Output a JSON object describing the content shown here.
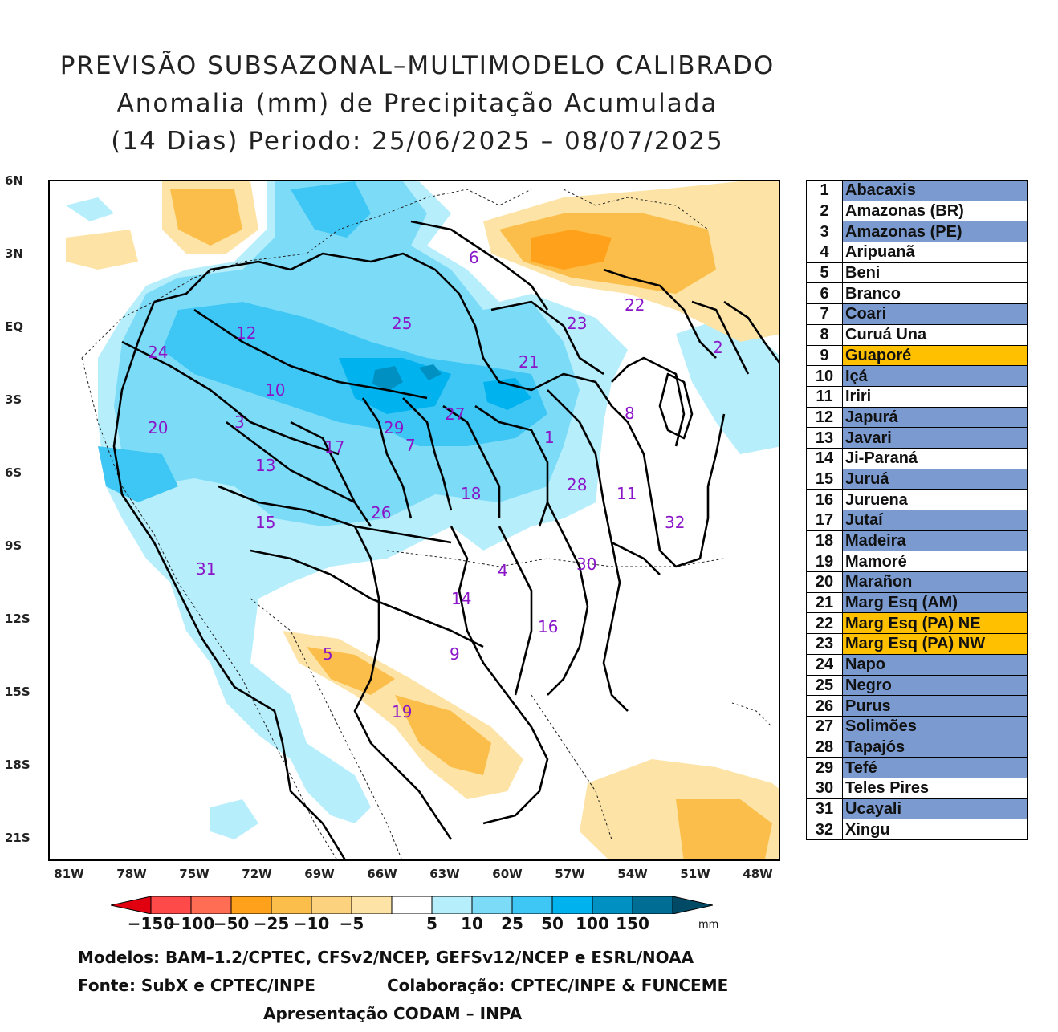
{
  "title": {
    "line1": "PREVISÃO SUBSAZONAL–MULTIMODELO CALIBRADO",
    "line2": "Anomalia (mm) de Precipitação Acumulada",
    "line3": "(14 Dias) Periodo: 25/06/2025 – 08/07/2025"
  },
  "axes": {
    "lat": [
      "6N",
      "3N",
      "EQ",
      "3S",
      "6S",
      "9S",
      "12S",
      "15S",
      "18S",
      "21S"
    ],
    "lon": [
      "81W",
      "78W",
      "75W",
      "72W",
      "69W",
      "66W",
      "63W",
      "60W",
      "57W",
      "54W",
      "51W",
      "48W"
    ]
  },
  "map_labels": [
    "1",
    "2",
    "3",
    "4",
    "5",
    "6",
    "7",
    "8",
    "9",
    "10",
    "11",
    "12",
    "13",
    "14",
    "15",
    "16",
    "17",
    "18",
    "19",
    "20",
    "21",
    "22",
    "23",
    "24",
    "25",
    "26",
    "27",
    "28",
    "29",
    "30",
    "31",
    "32"
  ],
  "basins": [
    {
      "num": "1",
      "name": "Abacaxis",
      "color": "#7b9bd0"
    },
    {
      "num": "2",
      "name": "Amazonas (BR)",
      "color": "#ffffff"
    },
    {
      "num": "3",
      "name": "Amazonas (PE)",
      "color": "#7b9bd0"
    },
    {
      "num": "4",
      "name": "Aripuanã",
      "color": "#ffffff"
    },
    {
      "num": "5",
      "name": "Beni",
      "color": "#ffffff"
    },
    {
      "num": "6",
      "name": "Branco",
      "color": "#ffffff"
    },
    {
      "num": "7",
      "name": "Coari",
      "color": "#7b9bd0"
    },
    {
      "num": "8",
      "name": "Curuá Una",
      "color": "#ffffff"
    },
    {
      "num": "9",
      "name": "Guaporé",
      "color": "#ffc000"
    },
    {
      "num": "10",
      "name": "Içá",
      "color": "#7b9bd0"
    },
    {
      "num": "11",
      "name": "Iriri",
      "color": "#ffffff"
    },
    {
      "num": "12",
      "name": "Japurá",
      "color": "#7b9bd0"
    },
    {
      "num": "13",
      "name": "Javari",
      "color": "#7b9bd0"
    },
    {
      "num": "14",
      "name": "Ji-Paraná",
      "color": "#ffffff"
    },
    {
      "num": "15",
      "name": "Juruá",
      "color": "#7b9bd0"
    },
    {
      "num": "16",
      "name": "Juruena",
      "color": "#ffffff"
    },
    {
      "num": "17",
      "name": "Jutaí",
      "color": "#7b9bd0"
    },
    {
      "num": "18",
      "name": "Madeira",
      "color": "#7b9bd0"
    },
    {
      "num": "19",
      "name": "Mamoré",
      "color": "#ffffff"
    },
    {
      "num": "20",
      "name": "Marañon",
      "color": "#7b9bd0"
    },
    {
      "num": "21",
      "name": "Marg Esq (AM)",
      "color": "#7b9bd0"
    },
    {
      "num": "22",
      "name": "Marg Esq (PA) NE",
      "color": "#ffc000"
    },
    {
      "num": "23",
      "name": "Marg Esq (PA) NW",
      "color": "#ffc000"
    },
    {
      "num": "24",
      "name": "Napo",
      "color": "#7b9bd0"
    },
    {
      "num": "25",
      "name": "Negro",
      "color": "#7b9bd0"
    },
    {
      "num": "26",
      "name": "Purus",
      "color": "#7b9bd0"
    },
    {
      "num": "27",
      "name": "Solimões",
      "color": "#7b9bd0"
    },
    {
      "num": "28",
      "name": "Tapajós",
      "color": "#7b9bd0"
    },
    {
      "num": "29",
      "name": "Tefé",
      "color": "#7b9bd0"
    },
    {
      "num": "30",
      "name": "Teles Pires",
      "color": "#ffffff"
    },
    {
      "num": "31",
      "name": "Ucayali",
      "color": "#7b9bd0"
    },
    {
      "num": "32",
      "name": "Xingu",
      "color": "#ffffff"
    }
  ],
  "colorbar": {
    "ticks": [
      "−150",
      "−100",
      "−50",
      "−25",
      "−10",
      "−5",
      "5",
      "10",
      "25",
      "50",
      "100",
      "150"
    ],
    "colors": [
      "#e1000f",
      "#ff4a4a",
      "#ff6e54",
      "#ffa11a",
      "#fbbe4a",
      "#fdd27f",
      "#fde4a6",
      "#ffffff",
      "#b6eefc",
      "#7cdcf8",
      "#3ec6f4",
      "#00b2ee",
      "#0091c2",
      "#006e94",
      "#004a66"
    ],
    "unit": "mm"
  },
  "footer": {
    "models": "Modelos: BAM–1.2/CPTEC, CFSv2/NCEP, GEFSv12/NCEP e ESRL/NOAA",
    "source": "Fonte: SubX e CPTEC/INPE",
    "collab": "Colaboração: CPTEC/INPE & FUNCEME",
    "presentation": "Apresentação CODAM – INPA"
  }
}
